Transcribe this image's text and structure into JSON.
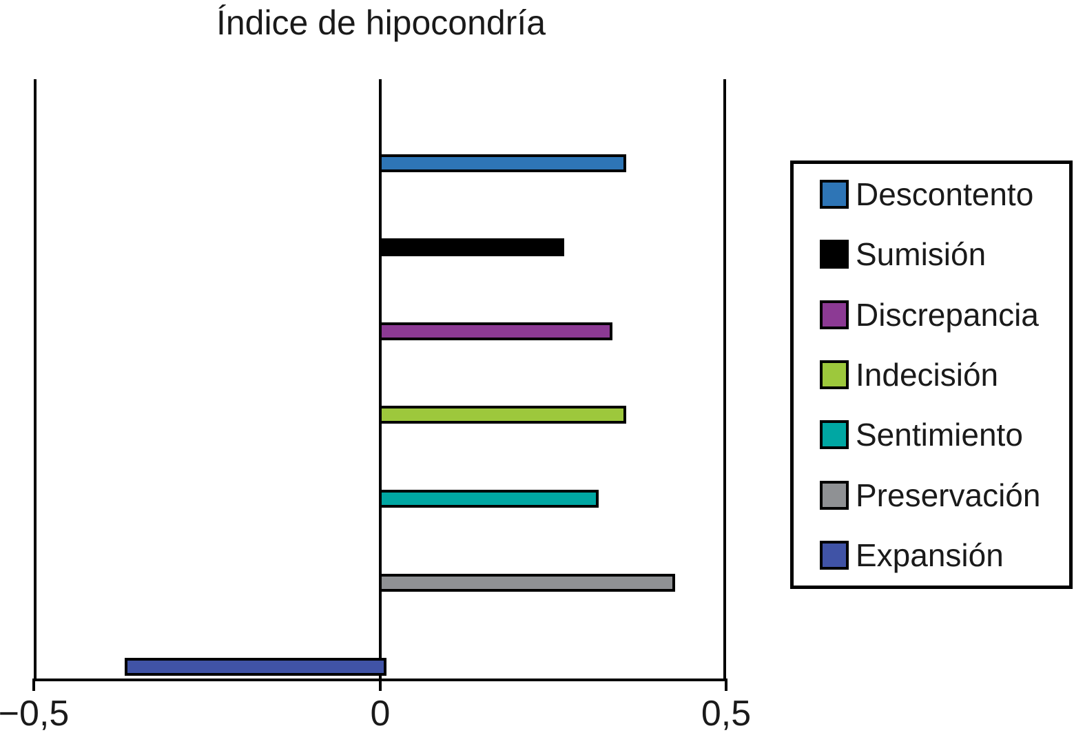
{
  "chart_data": {
    "type": "bar",
    "orientation": "horizontal",
    "title": "Índice de hipocondría",
    "categories": [
      "Descontento",
      "Sumisión",
      "Discrepancia",
      "Indecisión",
      "Sentimiento",
      "Preservación",
      "Expansión"
    ],
    "values": [
      0.35,
      0.26,
      0.33,
      0.35,
      0.31,
      0.42,
      -0.37
    ],
    "colors": [
      "#2E75B6",
      "#000000",
      "#8C3A94",
      "#9DC83C",
      "#00A7A3",
      "#8F9194",
      "#4053A6"
    ],
    "bar_outline_color": "#000000",
    "xlim": [
      -0.5,
      0.5
    ],
    "x_ticks": [
      {
        "value": -0.5,
        "label": "−0,5"
      },
      {
        "value": 0,
        "label": "0"
      },
      {
        "value": 0.5,
        "label": "0,5"
      }
    ],
    "xlabel": "",
    "ylabel": "",
    "grid": "vertical lines at x ticks",
    "legend_position": "right"
  }
}
